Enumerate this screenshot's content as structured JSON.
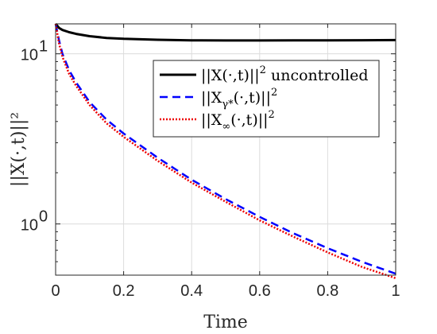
{
  "chart_data": {
    "type": "line",
    "xlabel": "Time",
    "ylabel": "||X(·,t)||²",
    "yscale": "log",
    "xlim": [
      0,
      1
    ],
    "ylim": [
      0.5,
      15
    ],
    "grid": true,
    "legend_placement": "top-right",
    "x_ticks": [
      {
        "value": 0,
        "label": "0"
      },
      {
        "value": 0.2,
        "label": "0.2"
      },
      {
        "value": 0.4,
        "label": "0.4"
      },
      {
        "value": 0.6,
        "label": "0.6"
      },
      {
        "value": 0.8,
        "label": "0.8"
      },
      {
        "value": 1,
        "label": "1"
      }
    ],
    "y_ticks": [
      {
        "value": 1,
        "base": "10",
        "exp": "0"
      },
      {
        "value": 10,
        "base": "10",
        "exp": "1"
      }
    ],
    "series": [
      {
        "name": "||X(·,t)||² uncontrolled",
        "color": "#000000",
        "style": "solid",
        "x": [
          0,
          0.01,
          0.02,
          0.04,
          0.06,
          0.1,
          0.15,
          0.2,
          0.3,
          0.4,
          0.5,
          0.6,
          0.7,
          0.8,
          0.9,
          1.0
        ],
        "y": [
          15.0,
          14.2,
          13.8,
          13.4,
          13.1,
          12.7,
          12.4,
          12.25,
          12.1,
          12.0,
          11.98,
          11.98,
          11.99,
          12.0,
          12.02,
          12.04
        ]
      },
      {
        "name": "||X_γ*(·,t)||²",
        "color": "#0000ff",
        "style": "dashed",
        "x": [
          0,
          0.01,
          0.02,
          0.04,
          0.06,
          0.1,
          0.15,
          0.2,
          0.3,
          0.4,
          0.5,
          0.6,
          0.7,
          0.8,
          0.9,
          1.0
        ],
        "y": [
          15.0,
          12.0,
          10.0,
          8.0,
          6.8,
          5.2,
          4.1,
          3.4,
          2.45,
          1.82,
          1.4,
          1.1,
          0.88,
          0.72,
          0.6,
          0.51
        ]
      },
      {
        "name": "||X_∞(·,t)||²",
        "color": "#ee0000",
        "style": "dotted",
        "x": [
          0,
          0.01,
          0.02,
          0.04,
          0.06,
          0.1,
          0.15,
          0.2,
          0.3,
          0.4,
          0.5,
          0.6,
          0.7,
          0.8,
          0.9,
          1.0
        ],
        "y": [
          15.0,
          11.5,
          9.6,
          7.6,
          6.5,
          5.0,
          3.9,
          3.25,
          2.35,
          1.75,
          1.35,
          1.05,
          0.84,
          0.68,
          0.56,
          0.48
        ]
      }
    ],
    "legend": [
      {
        "main": "||X(·,t)||",
        "sub": "",
        "sup": "2",
        "after": " uncontrolled"
      },
      {
        "main": "||X",
        "sub": "γ*",
        "sup": "2",
        "after": "(·,t)||"
      },
      {
        "main": "||X",
        "sub": "∞",
        "sup": "2",
        "after": "(·,t)||"
      }
    ]
  }
}
